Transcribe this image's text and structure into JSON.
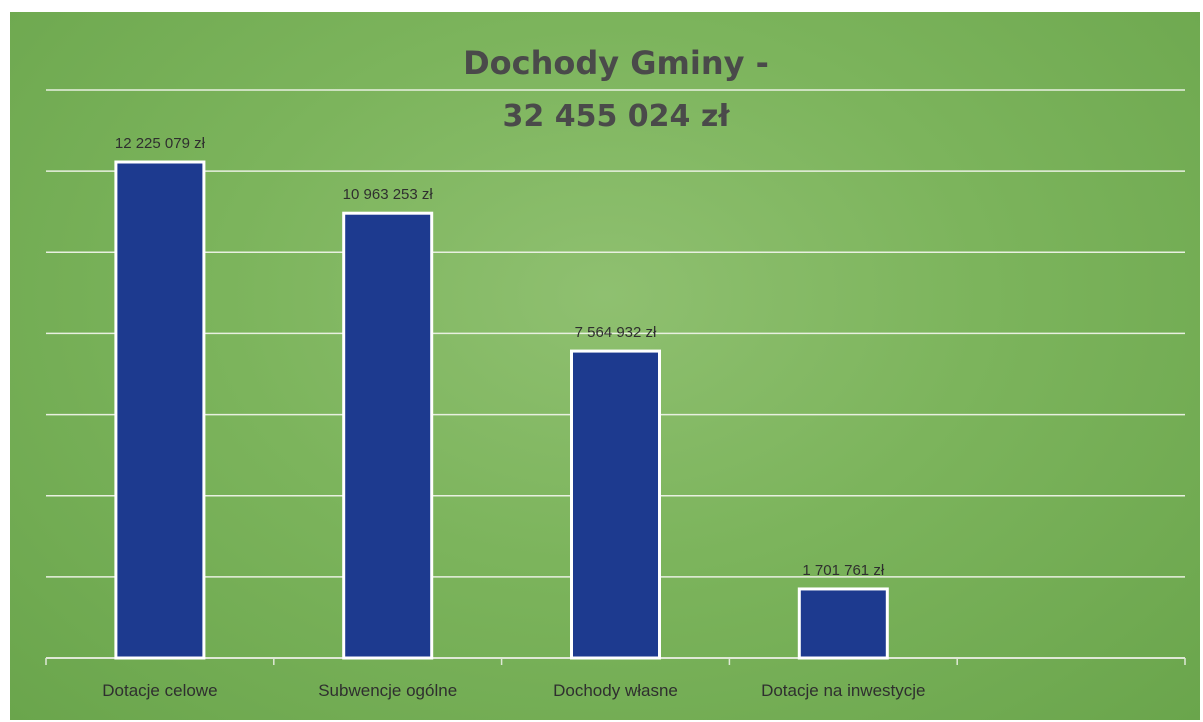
{
  "chart_data": {
    "type": "bar",
    "title": "Dochody Gminy -",
    "subtitle": "32 455 024 zł",
    "categories": [
      "Dotacje celowe",
      "Subwencje ogólne",
      "Dochody własne",
      "Dotacje na inwestycje"
    ],
    "values": [
      12225079,
      10963253,
      7564932,
      1701761
    ],
    "data_labels": [
      "12 225 079 zł",
      "10 963 253 zł",
      "7 564 932 zł",
      "1 701 761 zł"
    ],
    "ylim": [
      0,
      14000000
    ],
    "y_gridline_step": 2000000,
    "grid": true,
    "legend": "none",
    "xlabel": "",
    "ylabel": ""
  },
  "colors": {
    "bar_fill": "#1d3a8f",
    "bar_stroke": "#ffffff",
    "gridline": "#e8f0e0",
    "background": "#7cb45c"
  }
}
